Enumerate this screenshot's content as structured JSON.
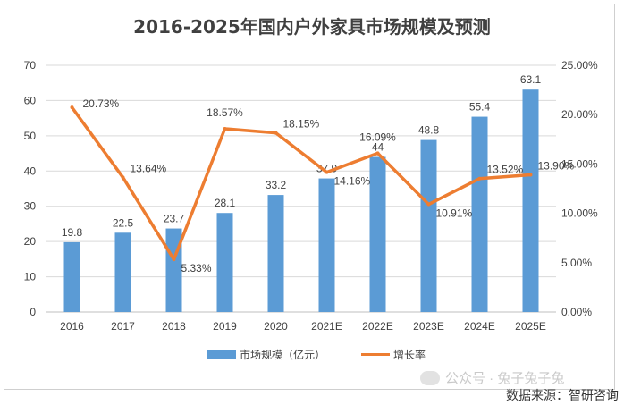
{
  "chart_data": {
    "type": "bar",
    "title": "2016-2025年国内户外家具市场规模及预测",
    "categories": [
      "2016",
      "2017",
      "2018",
      "2019",
      "2020",
      "2021E",
      "2022E",
      "2023E",
      "2024E",
      "2025E"
    ],
    "series": [
      {
        "name": "市场规模（亿元）",
        "type": "bar",
        "axis": "left",
        "color": "#5b9bd5",
        "values": [
          19.8,
          22.5,
          23.7,
          28.1,
          33.2,
          37.9,
          44,
          48.8,
          55.4,
          63.1
        ],
        "labels": [
          "19.8",
          "22.5",
          "23.7",
          "28.1",
          "33.2",
          "37.9",
          "44",
          "48.8",
          "55.4",
          "63.1"
        ]
      },
      {
        "name": "增长率",
        "type": "line",
        "axis": "right",
        "color": "#ed7d31",
        "values": [
          20.73,
          13.64,
          5.33,
          18.57,
          18.15,
          14.16,
          16.09,
          10.91,
          13.52,
          13.9
        ],
        "labels": [
          "20.73%",
          "13.64%",
          "5.33%",
          "18.57%",
          "18.15%",
          "14.16%",
          "16.09%",
          "10.91%",
          "13.52%",
          "13.90%"
        ]
      }
    ],
    "y_left": {
      "min": 0,
      "max": 70,
      "ticks": [
        0,
        10,
        20,
        30,
        40,
        50,
        60,
        70
      ]
    },
    "y_right": {
      "min": 0,
      "max": 25,
      "ticks": [
        "0.00%",
        "5.00%",
        "10.00%",
        "15.00%",
        "20.00%",
        "25.00%"
      ]
    },
    "grid": true,
    "legend": "bottom"
  },
  "watermark": "公众号 · 兔子兔子兔",
  "source": "数据来源：智研咨询"
}
